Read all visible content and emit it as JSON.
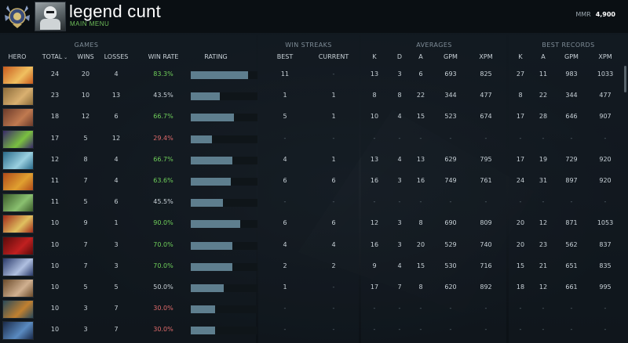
{
  "player": {
    "name": "legend cunt",
    "menu_label": "MAIN MENU",
    "mmr_label": "MMR",
    "mmr_value": "4,900"
  },
  "groups": {
    "games": "GAMES",
    "win_streaks": "WIN STREAKS",
    "averages": "AVERAGES",
    "best_records": "BEST RECORDS"
  },
  "headers": {
    "hero": "HERO",
    "total": "TOTAL",
    "wins": "WINS",
    "losses": "LOSSES",
    "win_rate": "WIN RATE",
    "rating": "RATING",
    "best": "BEST",
    "current": "CURRENT",
    "avg_k": "K",
    "avg_d": "D",
    "avg_a": "A",
    "avg_gpm": "GPM",
    "avg_xpm": "XPM",
    "rec_k": "K",
    "rec_a": "A",
    "rec_gpm": "GPM",
    "rec_xpm": "XPM"
  },
  "heroes": [
    {
      "portrait_colors": [
        "#c85a1e",
        "#f0c060"
      ],
      "total": "24",
      "wins": "20",
      "losses": "4",
      "win_rate": "83.3%",
      "rating": 0.86,
      "streak_best": "11",
      "streak_current": "-",
      "k": "13",
      "d": "3",
      "a": "6",
      "gpm": "693",
      "xpm": "825",
      "rk": "27",
      "ra": "11",
      "rgpm": "983",
      "rxpm": "1033"
    },
    {
      "portrait_colors": [
        "#8a6a3a",
        "#d9b070"
      ],
      "total": "23",
      "wins": "10",
      "losses": "13",
      "win_rate": "43.5%",
      "rating": 0.43,
      "streak_best": "1",
      "streak_current": "1",
      "k": "8",
      "d": "8",
      "a": "22",
      "gpm": "344",
      "xpm": "477",
      "rk": "8",
      "ra": "22",
      "rgpm": "344",
      "rxpm": "477"
    },
    {
      "portrait_colors": [
        "#6a3a2a",
        "#c07a50"
      ],
      "total": "18",
      "wins": "12",
      "losses": "6",
      "win_rate": "66.7%",
      "rating": 0.65,
      "streak_best": "5",
      "streak_current": "1",
      "k": "10",
      "d": "4",
      "a": "15",
      "gpm": "523",
      "xpm": "674",
      "rk": "17",
      "ra": "28",
      "rgpm": "646",
      "rxpm": "907"
    },
    {
      "portrait_colors": [
        "#3a2a6a",
        "#7ac040"
      ],
      "total": "17",
      "wins": "5",
      "losses": "12",
      "win_rate": "29.4%",
      "rating": 0.32,
      "streak_best": "-",
      "streak_current": "-",
      "k": "-",
      "d": "-",
      "a": "-",
      "gpm": "-",
      "xpm": "-",
      "rk": "-",
      "ra": "-",
      "rgpm": "-",
      "rxpm": "-"
    },
    {
      "portrait_colors": [
        "#2a6a8a",
        "#9ad0e0"
      ],
      "total": "12",
      "wins": "8",
      "losses": "4",
      "win_rate": "66.7%",
      "rating": 0.62,
      "streak_best": "4",
      "streak_current": "1",
      "k": "13",
      "d": "4",
      "a": "13",
      "gpm": "629",
      "xpm": "795",
      "rk": "17",
      "ra": "19",
      "rgpm": "729",
      "rxpm": "920"
    },
    {
      "portrait_colors": [
        "#b04a1a",
        "#e0a030"
      ],
      "total": "11",
      "wins": "7",
      "losses": "4",
      "win_rate": "63.6%",
      "rating": 0.6,
      "streak_best": "6",
      "streak_current": "6",
      "k": "16",
      "d": "3",
      "a": "16",
      "gpm": "749",
      "xpm": "761",
      "rk": "24",
      "ra": "31",
      "rgpm": "897",
      "rxpm": "920"
    },
    {
      "portrait_colors": [
        "#3a5a2a",
        "#8ac070"
      ],
      "total": "11",
      "wins": "5",
      "losses": "6",
      "win_rate": "45.5%",
      "rating": 0.48,
      "streak_best": "-",
      "streak_current": "-",
      "k": "-",
      "d": "-",
      "a": "-",
      "gpm": "-",
      "xpm": "-",
      "rk": "-",
      "ra": "-",
      "rgpm": "-",
      "rxpm": "-"
    },
    {
      "portrait_colors": [
        "#a02a1a",
        "#e0c060"
      ],
      "total": "10",
      "wins": "9",
      "losses": "1",
      "win_rate": "90.0%",
      "rating": 0.74,
      "streak_best": "6",
      "streak_current": "6",
      "k": "12",
      "d": "3",
      "a": "8",
      "gpm": "690",
      "xpm": "809",
      "rk": "20",
      "ra": "12",
      "rgpm": "871",
      "rxpm": "1053"
    },
    {
      "portrait_colors": [
        "#5a0a0a",
        "#c02020"
      ],
      "total": "10",
      "wins": "7",
      "losses": "3",
      "win_rate": "70.0%",
      "rating": 0.62,
      "streak_best": "4",
      "streak_current": "4",
      "k": "16",
      "d": "3",
      "a": "20",
      "gpm": "529",
      "xpm": "740",
      "rk": "20",
      "ra": "23",
      "rgpm": "562",
      "rxpm": "837"
    },
    {
      "portrait_colors": [
        "#2a3a6a",
        "#b0c0e0"
      ],
      "total": "10",
      "wins": "7",
      "losses": "3",
      "win_rate": "70.0%",
      "rating": 0.62,
      "streak_best": "2",
      "streak_current": "2",
      "k": "9",
      "d": "4",
      "a": "15",
      "gpm": "530",
      "xpm": "716",
      "rk": "15",
      "ra": "21",
      "rgpm": "651",
      "rxpm": "835"
    },
    {
      "portrait_colors": [
        "#6a4a2a",
        "#d0b090"
      ],
      "total": "10",
      "wins": "5",
      "losses": "5",
      "win_rate": "50.0%",
      "rating": 0.49,
      "streak_best": "1",
      "streak_current": "-",
      "k": "17",
      "d": "7",
      "a": "8",
      "gpm": "620",
      "xpm": "892",
      "rk": "18",
      "ra": "12",
      "rgpm": "661",
      "rxpm": "995"
    },
    {
      "portrait_colors": [
        "#2a4a5a",
        "#c08030"
      ],
      "total": "10",
      "wins": "3",
      "losses": "7",
      "win_rate": "30.0%",
      "rating": 0.37,
      "streak_best": "-",
      "streak_current": "-",
      "k": "-",
      "d": "-",
      "a": "-",
      "gpm": "-",
      "xpm": "-",
      "rk": "-",
      "ra": "-",
      "rgpm": "-",
      "rxpm": "-"
    },
    {
      "portrait_colors": [
        "#1a2a4a",
        "#5a8ac0"
      ],
      "total": "10",
      "wins": "3",
      "losses": "7",
      "win_rate": "30.0%",
      "rating": 0.37,
      "streak_best": "-",
      "streak_current": "-",
      "k": "-",
      "d": "-",
      "a": "-",
      "gpm": "-",
      "xpm": "-",
      "rk": "-",
      "ra": "-",
      "rgpm": "-",
      "rxpm": "-"
    }
  ]
}
